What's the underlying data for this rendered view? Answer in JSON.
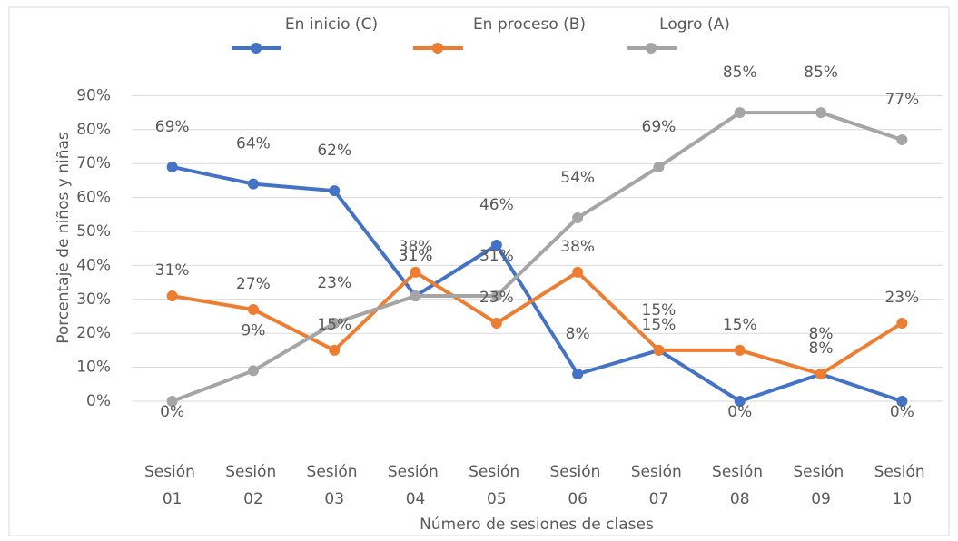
{
  "chart_data": {
    "type": "line",
    "x_label": "Número de sesiones de clases",
    "y_label": "Porcentaje de niños y niñas",
    "categories": [
      "Sesión 01",
      "Sesión 02",
      "Sesión 03",
      "Sesión 04",
      "Sesión 05",
      "Sesión 06",
      "Sesión 07",
      "Sesión 08",
      "Sesión 09",
      "Sesión 10"
    ],
    "series": [
      {
        "name": "En inicio (C)",
        "color": "#4472c4",
        "values": [
          69,
          64,
          62,
          31,
          46,
          8,
          15,
          0,
          8,
          0
        ],
        "value_labels": [
          "69%",
          "64%",
          "62%",
          "31%",
          "46%",
          "8%",
          "15%",
          "0%",
          "8%",
          "0%"
        ]
      },
      {
        "name": "En proceso (B)",
        "color": "#ed7d31",
        "values": [
          31,
          27,
          15,
          38,
          23,
          38,
          15,
          15,
          8,
          23
        ],
        "value_labels": [
          "31%",
          "27%",
          "15%",
          "38%",
          "23%",
          "38%",
          "15%",
          "15%",
          "8%",
          "23%"
        ]
      },
      {
        "name": "Logro (A)",
        "color": "#a5a5a5",
        "values": [
          0,
          9,
          23,
          31,
          31,
          54,
          69,
          85,
          85,
          77
        ],
        "value_labels": [
          "0%",
          "9%",
          "23%",
          "31%",
          "31%",
          "54%",
          "69%",
          "85%",
          "85%",
          "77%"
        ]
      }
    ],
    "ylim": [
      0,
      100
    ],
    "yticks": [
      {
        "value": 0,
        "label": "0%"
      },
      {
        "value": 10,
        "label": "10%"
      },
      {
        "value": 20,
        "label": "20%"
      },
      {
        "value": 30,
        "label": "30%"
      },
      {
        "value": 40,
        "label": "40%"
      },
      {
        "value": 50,
        "label": "50%"
      },
      {
        "value": 60,
        "label": "60%"
      },
      {
        "value": 70,
        "label": "70%"
      },
      {
        "value": 80,
        "label": "80%"
      },
      {
        "value": 90,
        "label": "90%"
      }
    ],
    "grid": true,
    "legend": "top"
  }
}
